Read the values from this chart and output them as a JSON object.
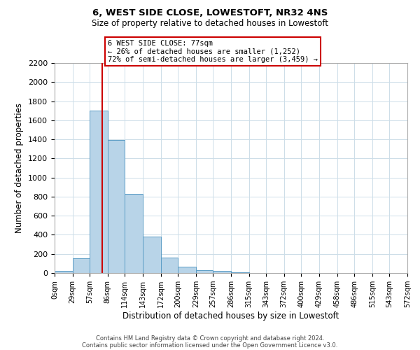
{
  "title": "6, WEST SIDE CLOSE, LOWESTOFT, NR32 4NS",
  "subtitle": "Size of property relative to detached houses in Lowestoft",
  "xlabel": "Distribution of detached houses by size in Lowestoft",
  "ylabel": "Number of detached properties",
  "bar_edges": [
    0,
    29,
    57,
    86,
    114,
    143,
    172,
    200,
    229,
    257,
    286,
    315,
    343,
    372,
    400,
    429,
    458,
    486,
    515,
    543,
    572
  ],
  "bar_heights": [
    20,
    155,
    1700,
    1390,
    830,
    380,
    160,
    65,
    30,
    25,
    5,
    0,
    0,
    0,
    0,
    0,
    0,
    0,
    0,
    0
  ],
  "bar_color": "#b8d4e8",
  "bar_edgecolor": "#5a9cc5",
  "property_size": 77,
  "property_line_color": "#cc0000",
  "annotation_line1": "6 WEST SIDE CLOSE: 77sqm",
  "annotation_line2": "← 26% of detached houses are smaller (1,252)",
  "annotation_line3": "72% of semi-detached houses are larger (3,459) →",
  "annotation_box_color": "#ffffff",
  "annotation_box_edgecolor": "#cc0000",
  "ylim": [
    0,
    2200
  ],
  "yticks": [
    0,
    200,
    400,
    600,
    800,
    1000,
    1200,
    1400,
    1600,
    1800,
    2000,
    2200
  ],
  "tick_labels": [
    "0sqm",
    "29sqm",
    "57sqm",
    "86sqm",
    "114sqm",
    "143sqm",
    "172sqm",
    "200sqm",
    "229sqm",
    "257sqm",
    "286sqm",
    "315sqm",
    "343sqm",
    "372sqm",
    "400sqm",
    "429sqm",
    "458sqm",
    "486sqm",
    "515sqm",
    "543sqm",
    "572sqm"
  ],
  "footer_line1": "Contains HM Land Registry data © Crown copyright and database right 2024.",
  "footer_line2": "Contains public sector information licensed under the Open Government Licence v3.0.",
  "bg_color": "#ffffff",
  "grid_color": "#ccdde8"
}
